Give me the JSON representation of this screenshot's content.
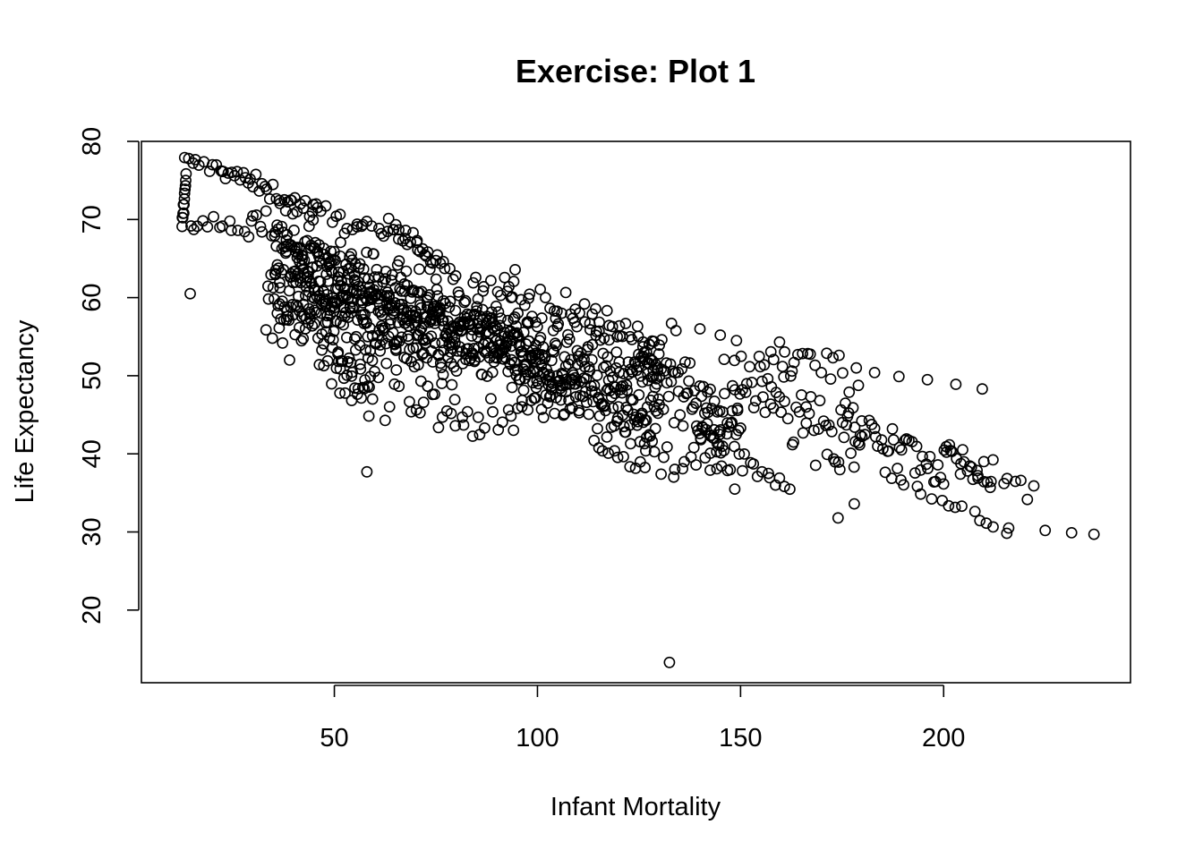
{
  "chart_data": {
    "type": "scatter",
    "title": "Exercise: Plot 1",
    "xlabel": "Infant Mortality",
    "ylabel": "Life Expectancy",
    "xlim": [
      2.5,
      246
    ],
    "ylim": [
      10.7,
      80
    ],
    "xticks": [
      50,
      100,
      150,
      200
    ],
    "yticks": [
      20,
      30,
      40,
      50,
      60,
      70,
      80
    ],
    "grid": false,
    "legend": "none",
    "point_style": "open-circle",
    "bands": [
      {
        "x0": 13,
        "x1": 22,
        "y0": 77.5,
        "y1": 76.5,
        "n": 10,
        "jitter": 0.4
      },
      {
        "x0": 22,
        "x1": 45,
        "y0": 76.5,
        "y1": 71.0,
        "n": 35,
        "jitter": 0.6
      },
      {
        "x0": 45,
        "x1": 75,
        "y0": 71.0,
        "y1": 66.0,
        "n": 30,
        "jitter": 0.7
      },
      {
        "x0": 12.5,
        "x1": 13.5,
        "y0": 69.5,
        "y1": 75.5,
        "n": 12,
        "jitter": 0.3
      },
      {
        "x0": 13,
        "x1": 30,
        "y0": 69.5,
        "y1": 69.0,
        "n": 15,
        "jitter": 0.6
      },
      {
        "x0": 30,
        "x1": 55,
        "y0": 70.0,
        "y1": 62.0,
        "n": 30,
        "jitter": 1.5
      },
      {
        "x0": 63,
        "x1": 78,
        "y0": 69.5,
        "y1": 64.0,
        "n": 16,
        "jitter": 0.6
      },
      {
        "x0": 35,
        "x1": 130,
        "y0": 65.0,
        "y1": 46.0,
        "n": 650,
        "jitter": 3.2
      },
      {
        "x0": 40,
        "x1": 100,
        "y0": 60.0,
        "y1": 53.0,
        "n": 150,
        "jitter": 2.5
      },
      {
        "x0": 33,
        "x1": 60,
        "y0": 61.0,
        "y1": 48.0,
        "n": 60,
        "jitter": 3.0
      },
      {
        "x0": 50,
        "x1": 80,
        "y0": 52.0,
        "y1": 46.0,
        "n": 40,
        "jitter": 2.5
      },
      {
        "x0": 90,
        "x1": 130,
        "y0": 61.0,
        "y1": 54.0,
        "n": 50,
        "jitter": 1.5
      },
      {
        "x0": 80,
        "x1": 110,
        "y0": 44.0,
        "y1": 48.0,
        "n": 30,
        "jitter": 1.5
      },
      {
        "x0": 115,
        "x1": 127,
        "y0": 40.5,
        "y1": 38.5,
        "n": 10,
        "jitter": 0.4
      },
      {
        "x0": 125,
        "x1": 150,
        "y0": 51.0,
        "y1": 44.0,
        "n": 80,
        "jitter": 2.5
      },
      {
        "x0": 130,
        "x1": 150,
        "y0": 40.0,
        "y1": 36.5,
        "n": 20,
        "jitter": 1.5
      },
      {
        "x0": 140,
        "x1": 146,
        "y0": 43.5,
        "y1": 41.0,
        "n": 14,
        "jitter": 0.8
      },
      {
        "x0": 150,
        "x1": 162,
        "y0": 40.0,
        "y1": 35.5,
        "n": 12,
        "jitter": 0.5
      },
      {
        "x0": 148,
        "x1": 180,
        "y0": 48.5,
        "y1": 42.5,
        "n": 60,
        "jitter": 2.5
      },
      {
        "x0": 155,
        "x1": 175,
        "y0": 53.0,
        "y1": 51.0,
        "n": 20,
        "jitter": 1.0
      },
      {
        "x0": 175,
        "x1": 200,
        "y0": 46.0,
        "y1": 38.0,
        "n": 40,
        "jitter": 1.5
      },
      {
        "x0": 185,
        "x1": 215,
        "y0": 37.0,
        "y1": 30.5,
        "n": 16,
        "jitter": 0.4
      },
      {
        "x0": 200,
        "x1": 212,
        "y0": 41.0,
        "y1": 35.5,
        "n": 16,
        "jitter": 0.5
      },
      {
        "x0": 200,
        "x1": 223,
        "y0": 40.0,
        "y1": 36.0,
        "n": 14,
        "jitter": 1.2
      }
    ],
    "points": [
      [
        14.5,
        60.5
      ],
      [
        58,
        37.7
      ],
      [
        132.5,
        13.3
      ],
      [
        174,
        31.8
      ],
      [
        178,
        33.6
      ],
      [
        225,
        30.2
      ],
      [
        231.5,
        29.9
      ],
      [
        237,
        29.7
      ],
      [
        216,
        30.5
      ],
      [
        178.5,
        51
      ],
      [
        183,
        50.4
      ],
      [
        189,
        49.9
      ],
      [
        196,
        49.5
      ],
      [
        203,
        48.9
      ],
      [
        209.5,
        48.3
      ],
      [
        133,
        56.7
      ],
      [
        140,
        56
      ],
      [
        145,
        55.2
      ],
      [
        149,
        54.5
      ]
    ]
  }
}
